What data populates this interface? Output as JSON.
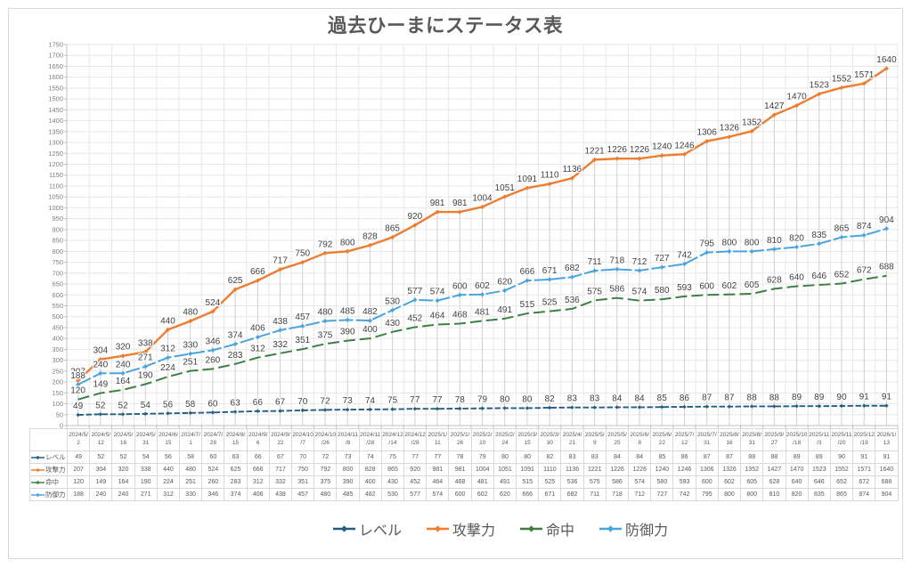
{
  "title": "過去ひーまにステータス表",
  "chart_data": {
    "type": "line",
    "title": "過去ひーまにステータス表",
    "categories": [
      "2024/5/2",
      "2024/5/12",
      "2024/5/16",
      "2024/5/31",
      "2024/6/15",
      "2024/7/1",
      "2024/7/28",
      "2024/8/15",
      "2024/9/6",
      "2024/9/22",
      "2024/10/7",
      "2024/10/26",
      "2024/11/8",
      "2024/11/28",
      "2024/12/14",
      "2024/12/28",
      "2025/1/11",
      "2025/1/26",
      "2025/2/10",
      "2025/2/24",
      "2025/3/15",
      "2025/3/30",
      "2025/4/21",
      "2025/5/9",
      "2025/5/25",
      "2025/6/8",
      "2025/6/22",
      "2025/7/12",
      "2025/7/31",
      "2025/8/16",
      "2025/8/31",
      "2025/9/27",
      "2025/10/18",
      "2025/11/3",
      "2025/11/20",
      "2025/12/19",
      "2026/1/13"
    ],
    "series": [
      {
        "name": "レベル",
        "color": "#235F80",
        "dash": "6.5 2.5",
        "marker": true,
        "values": [
          49,
          52,
          52,
          54,
          56,
          58,
          60,
          63,
          66,
          67,
          70,
          72,
          73,
          74,
          75,
          77,
          77,
          78,
          79,
          80,
          80,
          82,
          83,
          83,
          84,
          84,
          85,
          86,
          87,
          87,
          88,
          88,
          89,
          89,
          90,
          91,
          91
        ]
      },
      {
        "name": "攻撃力",
        "color": "#ED7D31",
        "dash": "",
        "marker": true,
        "values": [
          207,
          304,
          320,
          338,
          440,
          480,
          524,
          625,
          666,
          717,
          750,
          792,
          800,
          828,
          865,
          920,
          981,
          981,
          1004,
          1051,
          1091,
          1110,
          1136,
          1221,
          1226,
          1226,
          1240,
          1246,
          1306,
          1326,
          1352,
          1427,
          1470,
          1523,
          1552,
          1571,
          1640
        ]
      },
      {
        "name": "命中",
        "color": "#3D8044",
        "dash": "13 5",
        "marker": false,
        "values": [
          120,
          149,
          164,
          190,
          224,
          251,
          260,
          283,
          312,
          332,
          351,
          375,
          390,
          400,
          430,
          452,
          464,
          468,
          481,
          491,
          515,
          525,
          536,
          575,
          586,
          574,
          580,
          593,
          600,
          602,
          605,
          628,
          640,
          646,
          652,
          672,
          688
        ]
      },
      {
        "name": "防御力",
        "color": "#4AA5DE",
        "dash": "16 3",
        "marker": true,
        "values": [
          188,
          240,
          240,
          271,
          312,
          330,
          346,
          374,
          406,
          438,
          457,
          480,
          485,
          482,
          530,
          577,
          574,
          600,
          602,
          620,
          666,
          671,
          682,
          711,
          718,
          712,
          727,
          742,
          795,
          800,
          800,
          810,
          820,
          835,
          865,
          874,
          904
        ]
      }
    ],
    "ylim": [
      0,
      1750
    ],
    "ytick_step": 50,
    "grid": true,
    "legend_position": "bottom",
    "data_table_shown": true
  }
}
